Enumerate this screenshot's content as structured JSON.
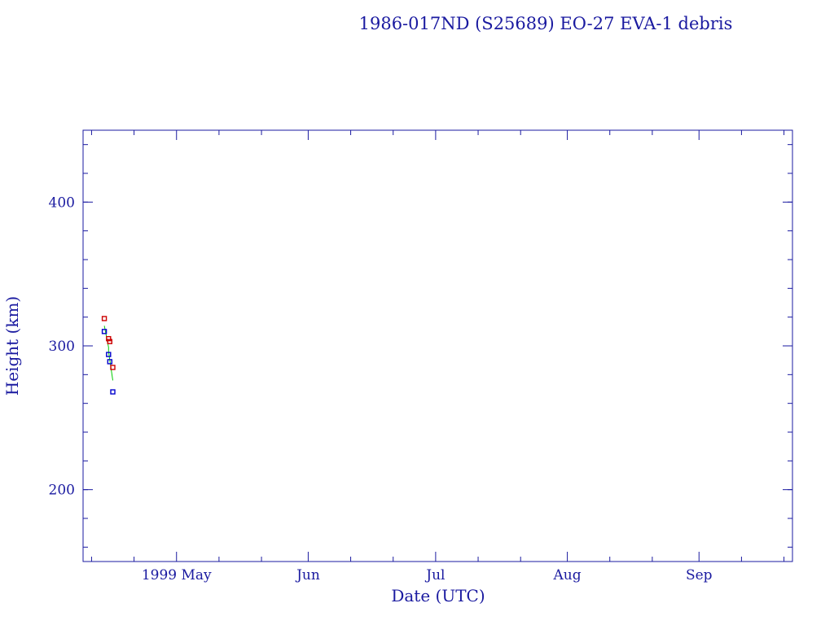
{
  "chart_data": {
    "type": "scatter",
    "title": "1986-017ND (S25689) EO-27 EVA-1 debris",
    "xlabel": "Date (UTC)",
    "ylabel": "Height (km)",
    "x_is_date": true,
    "xlim": [
      "1999-04-09",
      "1999-09-23"
    ],
    "ylim": [
      150,
      450
    ],
    "x_ticks": [
      {
        "label": "1999 May",
        "date": "1999-05-01"
      },
      {
        "label": "Jun",
        "date": "1999-06-01"
      },
      {
        "label": "Jul",
        "date": "1999-07-01"
      },
      {
        "label": "Aug",
        "date": "1999-08-01"
      },
      {
        "label": "Sep",
        "date": "1999-09-01"
      }
    ],
    "y_ticks": [
      200,
      300,
      400
    ],
    "grid": false,
    "colors": {
      "axis": "#1a1aa0",
      "apogee": "#cc0000",
      "perigee": "#0000cc",
      "mean": "#00cc00"
    },
    "series": [
      {
        "key": "apogee",
        "type": "scatter",
        "points": [
          {
            "x": "1999-04-14",
            "y": 319
          },
          {
            "x": "1999-04-15",
            "y": 305
          },
          {
            "x": "1999-04-15",
            "y": 303
          },
          {
            "x": "1999-04-16",
            "y": 285
          }
        ]
      },
      {
        "key": "perigee",
        "type": "scatter",
        "points": [
          {
            "x": "1999-04-14",
            "y": 310
          },
          {
            "x": "1999-04-15",
            "y": 294
          },
          {
            "x": "1999-04-15",
            "y": 289
          },
          {
            "x": "1999-04-16",
            "y": 268
          }
        ]
      },
      {
        "key": "mean",
        "type": "line",
        "points": [
          {
            "x": "1999-04-14",
            "y": 314
          },
          {
            "x": "1999-04-15",
            "y": 299
          },
          {
            "x": "1999-04-15",
            "y": 296
          },
          {
            "x": "1999-04-16",
            "y": 276
          }
        ]
      }
    ]
  }
}
